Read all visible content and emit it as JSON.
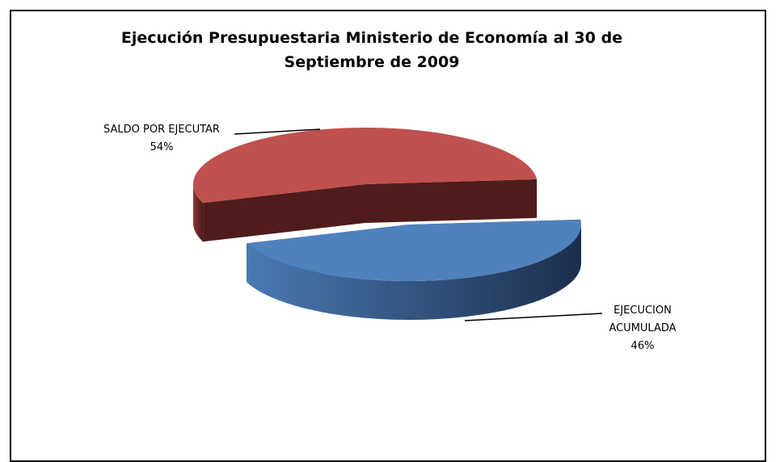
{
  "chart_data": {
    "type": "pie3d",
    "title": "Ejecución Presupuestaria Ministerio de Economía al 30 de Septiembre de 2009",
    "categories": [
      "SALDO POR EJECUTAR",
      "EJECUCION ACUMULADA"
    ],
    "values": [
      54,
      46
    ],
    "value_labels": [
      "54%",
      "46%"
    ],
    "colors": [
      "#c0504d",
      "#4f81bd"
    ]
  }
}
